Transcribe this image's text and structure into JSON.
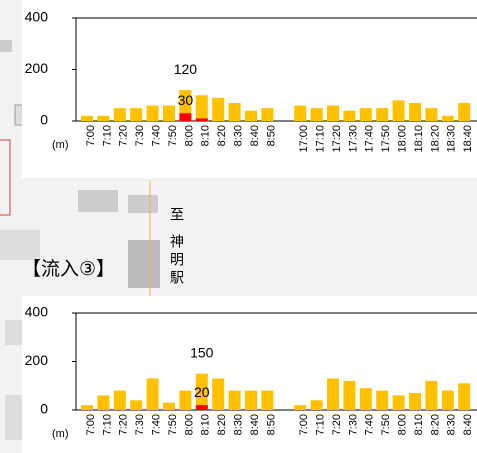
{
  "chart_data": [
    {
      "type": "bar",
      "ylabel": "(m)",
      "categories": [
        "7:00",
        "7:10",
        "7:20",
        "7:30",
        "7:40",
        "7:50",
        "8:00",
        "8:10",
        "8:20",
        "8:30",
        "8:40",
        "8:50",
        null,
        "17:00",
        "17:10",
        "17:20",
        "17:30",
        "17:40",
        "17:50",
        "18:00",
        "18:10",
        "18:20",
        "18:30",
        "18:40"
      ],
      "series": [
        {
          "color": "#ffc000",
          "values": [
            20,
            20,
            50,
            50,
            60,
            60,
            120,
            100,
            90,
            70,
            40,
            50,
            null,
            60,
            50,
            60,
            40,
            50,
            50,
            80,
            70,
            50,
            20,
            70
          ]
        },
        {
          "color": "#ff0000",
          "values": [
            0,
            0,
            0,
            0,
            0,
            0,
            30,
            10,
            0,
            0,
            0,
            0,
            null,
            0,
            0,
            0,
            0,
            0,
            0,
            0,
            0,
            0,
            0,
            0
          ]
        }
      ],
      "ylim": [
        0,
        400
      ],
      "yticks": [
        0,
        200,
        400
      ]
    },
    {
      "type": "bar",
      "ylabel": "(m)",
      "categories": [
        "7:00",
        "7:10",
        "7:20",
        "7:30",
        "7:40",
        "7:50",
        "8:00",
        "8:10",
        "8:20",
        "8:30",
        "8:40",
        "8:50",
        null,
        "7:00",
        "7:10",
        "7:20",
        "7:30",
        "7:40",
        "7:50",
        "8:00",
        "8:10",
        "8:20",
        "8:30",
        "8:40"
      ],
      "series": [
        {
          "color": "#ffc000",
          "values": [
            20,
            60,
            80,
            40,
            130,
            30,
            80,
            150,
            130,
            80,
            80,
            80,
            null,
            20,
            40,
            130,
            120,
            90,
            80,
            60,
            70,
            120,
            80,
            110
          ]
        },
        {
          "color": "#ff0000",
          "values": [
            0,
            0,
            0,
            0,
            0,
            0,
            0,
            20,
            0,
            0,
            0,
            0,
            null,
            0,
            0,
            0,
            0,
            0,
            0,
            0,
            0,
            0,
            0,
            0
          ]
        }
      ],
      "ylim": [
        0,
        400
      ],
      "yticks": [
        0,
        200,
        400
      ]
    }
  ],
  "map": {
    "title": "【流入③】",
    "direction": [
      "至",
      "神",
      "明",
      "駅"
    ]
  }
}
